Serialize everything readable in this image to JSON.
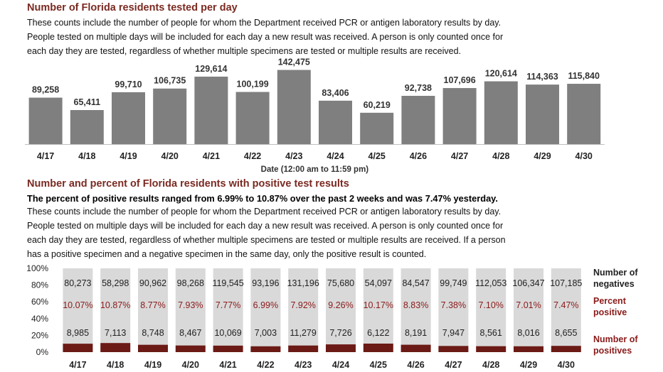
{
  "section1": {
    "title": "Number of Florida residents tested per day",
    "description": [
      "These counts include the number of people for whom the Department received PCR or antigen laboratory results by day.",
      "People tested on multiple days will be included for each day a new result was received. A person is only counted once for",
      "each day they are tested, regardless of whether multiple specimens are tested or multiple results are received."
    ]
  },
  "section2": {
    "title": "Number and percent of Florida residents with positive test results",
    "summary": "The percent of positive results ranged from 6.99% to 10.87% over the past 2 weeks and was 7.47% yesterday.",
    "description": [
      "These counts include the number of people for whom the Department received PCR or antigen laboratory results by day.",
      "People tested on multiple days will be included for each day a new result was received. A person is only counted once for",
      "each day they are tested, regardless of whether multiple specimens are tested or multiple results are received. If a person",
      "has a positive specimen and a negative specimen in the same day, only the positive result is counted."
    ]
  },
  "colors": {
    "title": "#7a2a22",
    "bar_gray": "#7f7f7f",
    "negative_fill": "#d9d9d9",
    "positive_fill": "#6b1a15",
    "percent_text": "#8b1a1a"
  },
  "chart_data": [
    {
      "type": "bar",
      "title": "Number of Florida residents tested per day",
      "xlabel": "Date (12:00 am to 11:59 pm)",
      "categories": [
        "4/17",
        "4/18",
        "4/19",
        "4/20",
        "4/21",
        "4/22",
        "4/23",
        "4/24",
        "4/25",
        "4/26",
        "4/27",
        "4/28",
        "4/29",
        "4/30"
      ],
      "values": [
        89258,
        65411,
        99710,
        106735,
        129614,
        100199,
        142475,
        83406,
        60219,
        92738,
        107696,
        120614,
        114363,
        115840
      ],
      "value_labels": [
        "89,258",
        "65,411",
        "99,710",
        "106,735",
        "129,614",
        "100,199",
        "142,475",
        "83,406",
        "60,219",
        "92,738",
        "107,696",
        "120,614",
        "114,363",
        "115,840"
      ],
      "ylim": [
        0,
        150000
      ]
    },
    {
      "type": "bar",
      "stacked": "percent",
      "title": "Number and percent of Florida residents with positive test results",
      "categories": [
        "4/17",
        "4/18",
        "4/19",
        "4/20",
        "4/21",
        "4/22",
        "4/23",
        "4/24",
        "4/25",
        "4/26",
        "4/27",
        "4/28",
        "4/29",
        "4/30"
      ],
      "yticks": [
        "100%",
        "80%",
        "60%",
        "40%",
        "20%",
        "0%"
      ],
      "series": [
        {
          "name": "Number of negatives",
          "values": [
            80273,
            58298,
            90962,
            98268,
            119545,
            93196,
            131196,
            75680,
            54097,
            84547,
            99749,
            112053,
            106347,
            107185
          ],
          "labels": [
            "80,273",
            "58,298",
            "90,962",
            "98,268",
            "119,545",
            "93,196",
            "131,196",
            "75,680",
            "54,097",
            "84,547",
            "99,749",
            "112,053",
            "106,347",
            "107,185"
          ]
        },
        {
          "name": "Percent positive",
          "values": [
            10.07,
            10.87,
            8.77,
            7.93,
            7.77,
            6.99,
            7.92,
            9.26,
            10.17,
            8.83,
            7.38,
            7.1,
            7.01,
            7.47
          ],
          "labels": [
            "10.07%",
            "10.87%",
            "8.77%",
            "7.93%",
            "7.77%",
            "6.99%",
            "7.92%",
            "9.26%",
            "10.17%",
            "8.83%",
            "7.38%",
            "7.10%",
            "7.01%",
            "7.47%"
          ]
        },
        {
          "name": "Number of positives",
          "values": [
            8985,
            7113,
            8748,
            8467,
            10069,
            7003,
            11279,
            7726,
            6122,
            8191,
            7947,
            8561,
            8016,
            8655
          ],
          "labels": [
            "8,985",
            "7,113",
            "8,748",
            "8,467",
            "10,069",
            "7,003",
            "11,279",
            "7,726",
            "6,122",
            "8,191",
            "7,947",
            "8,561",
            "8,016",
            "8,655"
          ]
        }
      ],
      "legend": [
        {
          "lines": [
            "Number of",
            "negatives"
          ]
        },
        {
          "lines": [
            "Percent",
            "positive"
          ]
        },
        {
          "lines": [
            "Number of",
            "positives"
          ]
        }
      ]
    }
  ]
}
